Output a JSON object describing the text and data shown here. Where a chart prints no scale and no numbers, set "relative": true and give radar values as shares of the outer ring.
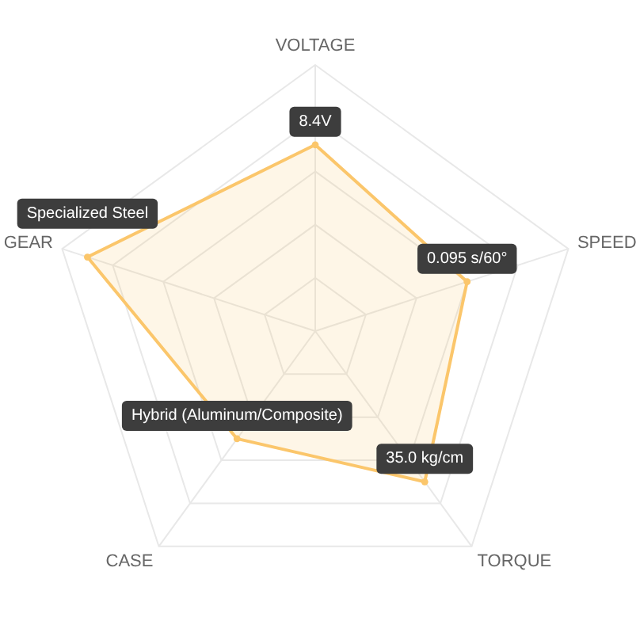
{
  "chart_data": {
    "type": "radar",
    "categories": [
      "VOLTAGE",
      "SPEED",
      "TORQUE",
      "CASE",
      "GEAR"
    ],
    "relative": true,
    "grid": true,
    "marker": "circle",
    "series": [
      {
        "color": "#fbc66b",
        "values": [
          0.7,
          0.6,
          0.7,
          0.5,
          0.9
        ]
      }
    ],
    "annotations": [
      {
        "text": "8.4V",
        "x": "VOLTAGE"
      },
      {
        "text": "0.095 s/60°",
        "x": "SPEED"
      },
      {
        "text": "35.0 kg/cm",
        "x": "TORQUE"
      },
      {
        "text": "Hybrid (Aluminum/Composite)",
        "x": "CASE"
      },
      {
        "text": "Specialized Steel",
        "x": "GEAR"
      }
    ]
  }
}
